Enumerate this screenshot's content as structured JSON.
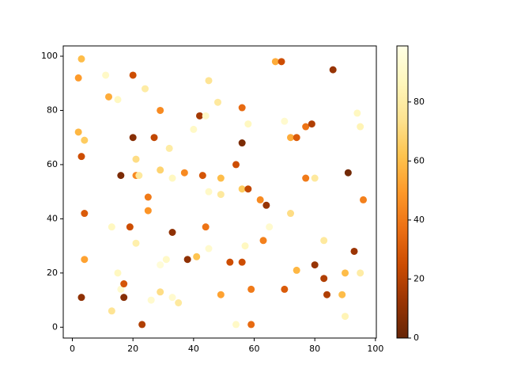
{
  "chart_data": {
    "type": "scatter",
    "x": [
      3,
      2,
      11,
      20,
      12,
      15,
      24,
      29,
      45,
      48,
      42,
      44,
      56,
      58,
      70,
      67,
      69,
      86,
      94,
      95,
      77,
      79,
      72,
      74,
      2,
      4,
      3,
      20,
      27,
      21,
      29,
      32,
      33,
      40,
      21,
      22,
      16,
      37,
      43,
      45,
      49,
      49,
      54,
      56,
      58,
      56,
      62,
      64,
      65,
      72,
      77,
      80,
      91,
      96,
      4,
      19,
      25,
      25,
      13,
      21,
      33,
      44,
      45,
      38,
      41,
      31,
      29,
      52,
      56,
      57,
      63,
      74,
      80,
      83,
      93,
      95,
      90,
      83,
      84,
      89,
      90,
      4,
      3,
      15,
      16,
      17,
      17,
      13,
      26,
      29,
      33,
      35,
      23,
      49,
      54,
      59,
      59,
      70
    ],
    "values": [
      99,
      92,
      93,
      93,
      85,
      84,
      88,
      80,
      91,
      83,
      78,
      78,
      81,
      75,
      76,
      98,
      98,
      95,
      79,
      74,
      74,
      75,
      70,
      70,
      72,
      69,
      63,
      70,
      70,
      62,
      58,
      66,
      55,
      73,
      56,
      56,
      56,
      57,
      56,
      50,
      55,
      49,
      60,
      51,
      51,
      68,
      47,
      45,
      37,
      42,
      55,
      55,
      57,
      47,
      42,
      37,
      48,
      43,
      37,
      31,
      35,
      37,
      29,
      25,
      26,
      25,
      23,
      24,
      24,
      30,
      32,
      21,
      23,
      32,
      28,
      20,
      20,
      18,
      12,
      12,
      4,
      25,
      11,
      20,
      14,
      16,
      11,
      6,
      10,
      13,
      11,
      9,
      1,
      12,
      1,
      14,
      1,
      14
    ],
    "c": [
      60,
      50,
      90,
      25,
      55,
      88,
      80,
      45,
      75,
      78,
      15,
      90,
      35,
      88,
      92,
      55,
      25,
      12,
      88,
      85,
      38,
      18,
      55,
      30,
      58,
      65,
      25,
      8,
      22,
      72,
      68,
      80,
      88,
      90,
      45,
      78,
      5,
      45,
      28,
      90,
      60,
      78,
      25,
      65,
      22,
      5,
      45,
      12,
      92,
      72,
      40,
      78,
      3,
      42,
      30,
      25,
      40,
      48,
      88,
      82,
      10,
      38,
      92,
      10,
      62,
      90,
      95,
      25,
      25,
      88,
      42,
      58,
      12,
      78,
      13,
      80,
      60,
      18,
      18,
      60,
      85,
      52,
      10,
      88,
      92,
      28,
      8,
      75,
      92,
      72,
      92,
      78,
      18,
      52,
      90,
      40,
      35,
      30
    ],
    "cmap": "YlOrBr_r",
    "xlim": [
      -3,
      100.3
    ],
    "ylim": [
      -4,
      103.8
    ],
    "clim": [
      0,
      99
    ],
    "xticks": [
      0,
      20,
      40,
      60,
      80,
      100
    ],
    "yticks": [
      0,
      20,
      40,
      60,
      80,
      100
    ],
    "cticks": [
      0,
      20,
      40,
      60,
      80
    ]
  }
}
